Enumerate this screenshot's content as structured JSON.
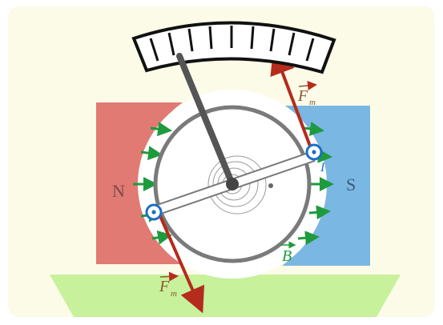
{
  "labels": {
    "north_pole": "N",
    "south_pole": "S",
    "force_top": "F",
    "force_top_sub": "m",
    "force_bottom": "F",
    "force_bottom_sub": "m",
    "field": "B",
    "current": "I"
  },
  "colors": {
    "background": "#fbfbe8",
    "frame": "#ffffff",
    "north_pole": "#e07a72",
    "south_pole": "#7bb7e3",
    "base": "#c7f19b",
    "field_lines": "#1f9a3e",
    "force_arrows": "#b52b1c",
    "force_labels": "#8a5a2b",
    "coil_ring": "#7a7a7a",
    "pointer": "#555555",
    "scale": "#111111",
    "conductor": "#1b6fc4"
  },
  "icons": {
    "current_out_symbol": "dot-in-circle-icon"
  }
}
